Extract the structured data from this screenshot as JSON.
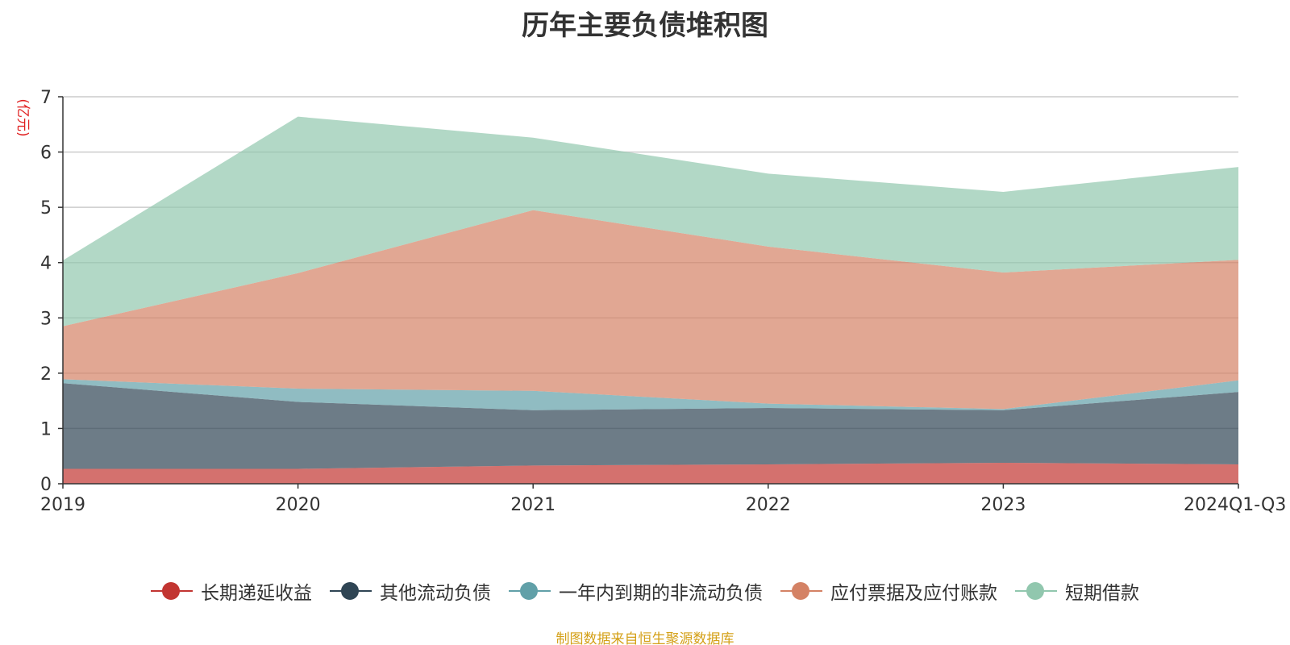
{
  "chart_data": {
    "type": "area",
    "stacked": true,
    "title": "历年主要负债堆积图",
    "y_unit_label": "(亿元)",
    "ylim": [
      0,
      7
    ],
    "y_ticks": [
      "0",
      "1",
      "2",
      "3",
      "4",
      "5",
      "6",
      "7"
    ],
    "categories": [
      "2019",
      "2020",
      "2021",
      "2022",
      "2023",
      "2024Q1-Q3"
    ],
    "grid": true,
    "legend_position": "bottom",
    "series": [
      {
        "name": "长期递延收益",
        "color": "#c23531",
        "values": [
          0.27,
          0.27,
          0.33,
          0.35,
          0.38,
          0.35
        ]
      },
      {
        "name": "其他流动负债",
        "color": "#2f4554",
        "values": [
          1.55,
          1.21,
          1.0,
          1.02,
          0.95,
          1.31
        ]
      },
      {
        "name": "一年内到期的非流动负债",
        "color": "#61a0a8",
        "values": [
          0.07,
          0.24,
          0.35,
          0.08,
          0.02,
          0.21
        ]
      },
      {
        "name": "应付票据及应付账款",
        "color": "#d48265",
        "values": [
          0.96,
          2.09,
          3.27,
          2.84,
          2.47,
          2.18
        ]
      },
      {
        "name": "短期借款",
        "color": "#91c7ae",
        "values": [
          1.19,
          2.83,
          1.31,
          1.32,
          1.46,
          1.68
        ]
      }
    ]
  },
  "source_note": "制图数据来自恒生聚源数据库"
}
